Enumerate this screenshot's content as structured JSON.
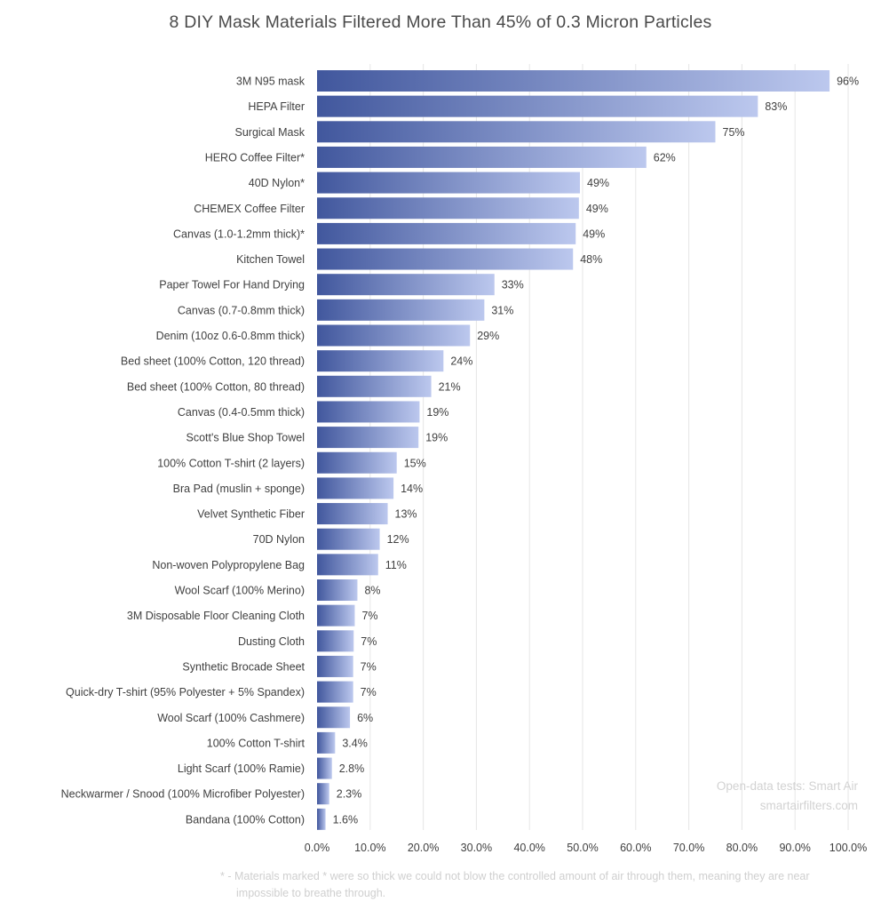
{
  "chart_data": {
    "type": "bar",
    "orientation": "horizontal",
    "title": "8 DIY Mask Materials Filtered More Than 45% of 0.3 Micron Particles",
    "xlabel": "",
    "ylabel": "",
    "xlim": [
      0,
      100
    ],
    "x_ticks": [
      "0.0%",
      "10.0%",
      "20.0%",
      "30.0%",
      "40.0%",
      "50.0%",
      "60.0%",
      "70.0%",
      "80.0%",
      "90.0%",
      "100.0%"
    ],
    "grid": "vertical",
    "legend": "none",
    "categories": [
      "3M N95 mask",
      "HEPA Filter",
      "Surgical Mask",
      "HERO Coffee Filter*",
      "40D Nylon*",
      "CHEMEX Coffee Filter",
      "Canvas (1.0-1.2mm thick)*",
      "Kitchen Towel",
      "Paper Towel For Hand Drying",
      "Canvas (0.7-0.8mm thick)",
      "Denim (10oz 0.6-0.8mm thick)",
      "Bed sheet (100% Cotton, 120 thread)",
      "Bed sheet (100% Cotton, 80 thread)",
      "Canvas (0.4-0.5mm thick)",
      "Scott's Blue Shop Towel",
      "100% Cotton T-shirt (2 layers)",
      "Bra Pad (muslin + sponge)",
      "Velvet Synthetic Fiber",
      "70D Nylon",
      "Non-woven Polypropylene Bag",
      "Wool Scarf (100% Merino)",
      "3M Disposable Floor Cleaning Cloth",
      "Dusting Cloth",
      "Synthetic Brocade Sheet",
      "Quick-dry T-shirt (95% Polyester + 5% Spandex)",
      "Wool Scarf (100% Cashmere)",
      "100% Cotton T-shirt",
      "Light Scarf (100% Ramie)",
      "Neckwarmer / Snood (100% Microfiber Polyester)",
      "Bandana (100% Cotton)"
    ],
    "values": [
      96.5,
      83,
      75,
      62,
      49.5,
      49.3,
      48.7,
      48.2,
      33.4,
      31.5,
      28.8,
      23.8,
      21.5,
      19.3,
      19.1,
      15,
      14.4,
      13.3,
      11.8,
      11.5,
      7.6,
      7.1,
      6.9,
      6.8,
      6.8,
      6.2,
      3.4,
      2.8,
      2.3,
      1.6
    ],
    "value_labels": [
      "96%",
      "83%",
      "75%",
      "62%",
      "49%",
      "49%",
      "49%",
      "48%",
      "33%",
      "31%",
      "29%",
      "24%",
      "21%",
      "19%",
      "19%",
      "15%",
      "14%",
      "13%",
      "12%",
      "11%",
      "8%",
      "7%",
      "7%",
      "7%",
      "7%",
      "6%",
      "3.4%",
      "2.8%",
      "2.3%",
      "1.6%"
    ],
    "colors": {
      "bar_start": "#41579d",
      "bar_end": "#bcc8ee",
      "grid": "#e6e6e6"
    }
  },
  "source": {
    "line1": "Open-data tests: Smart Air",
    "line2": "smartairfilters.com"
  },
  "footnote": "* - Materials marked * were so thick we could not blow the controlled amount of air through them, meaning they are near impossible to breathe through."
}
